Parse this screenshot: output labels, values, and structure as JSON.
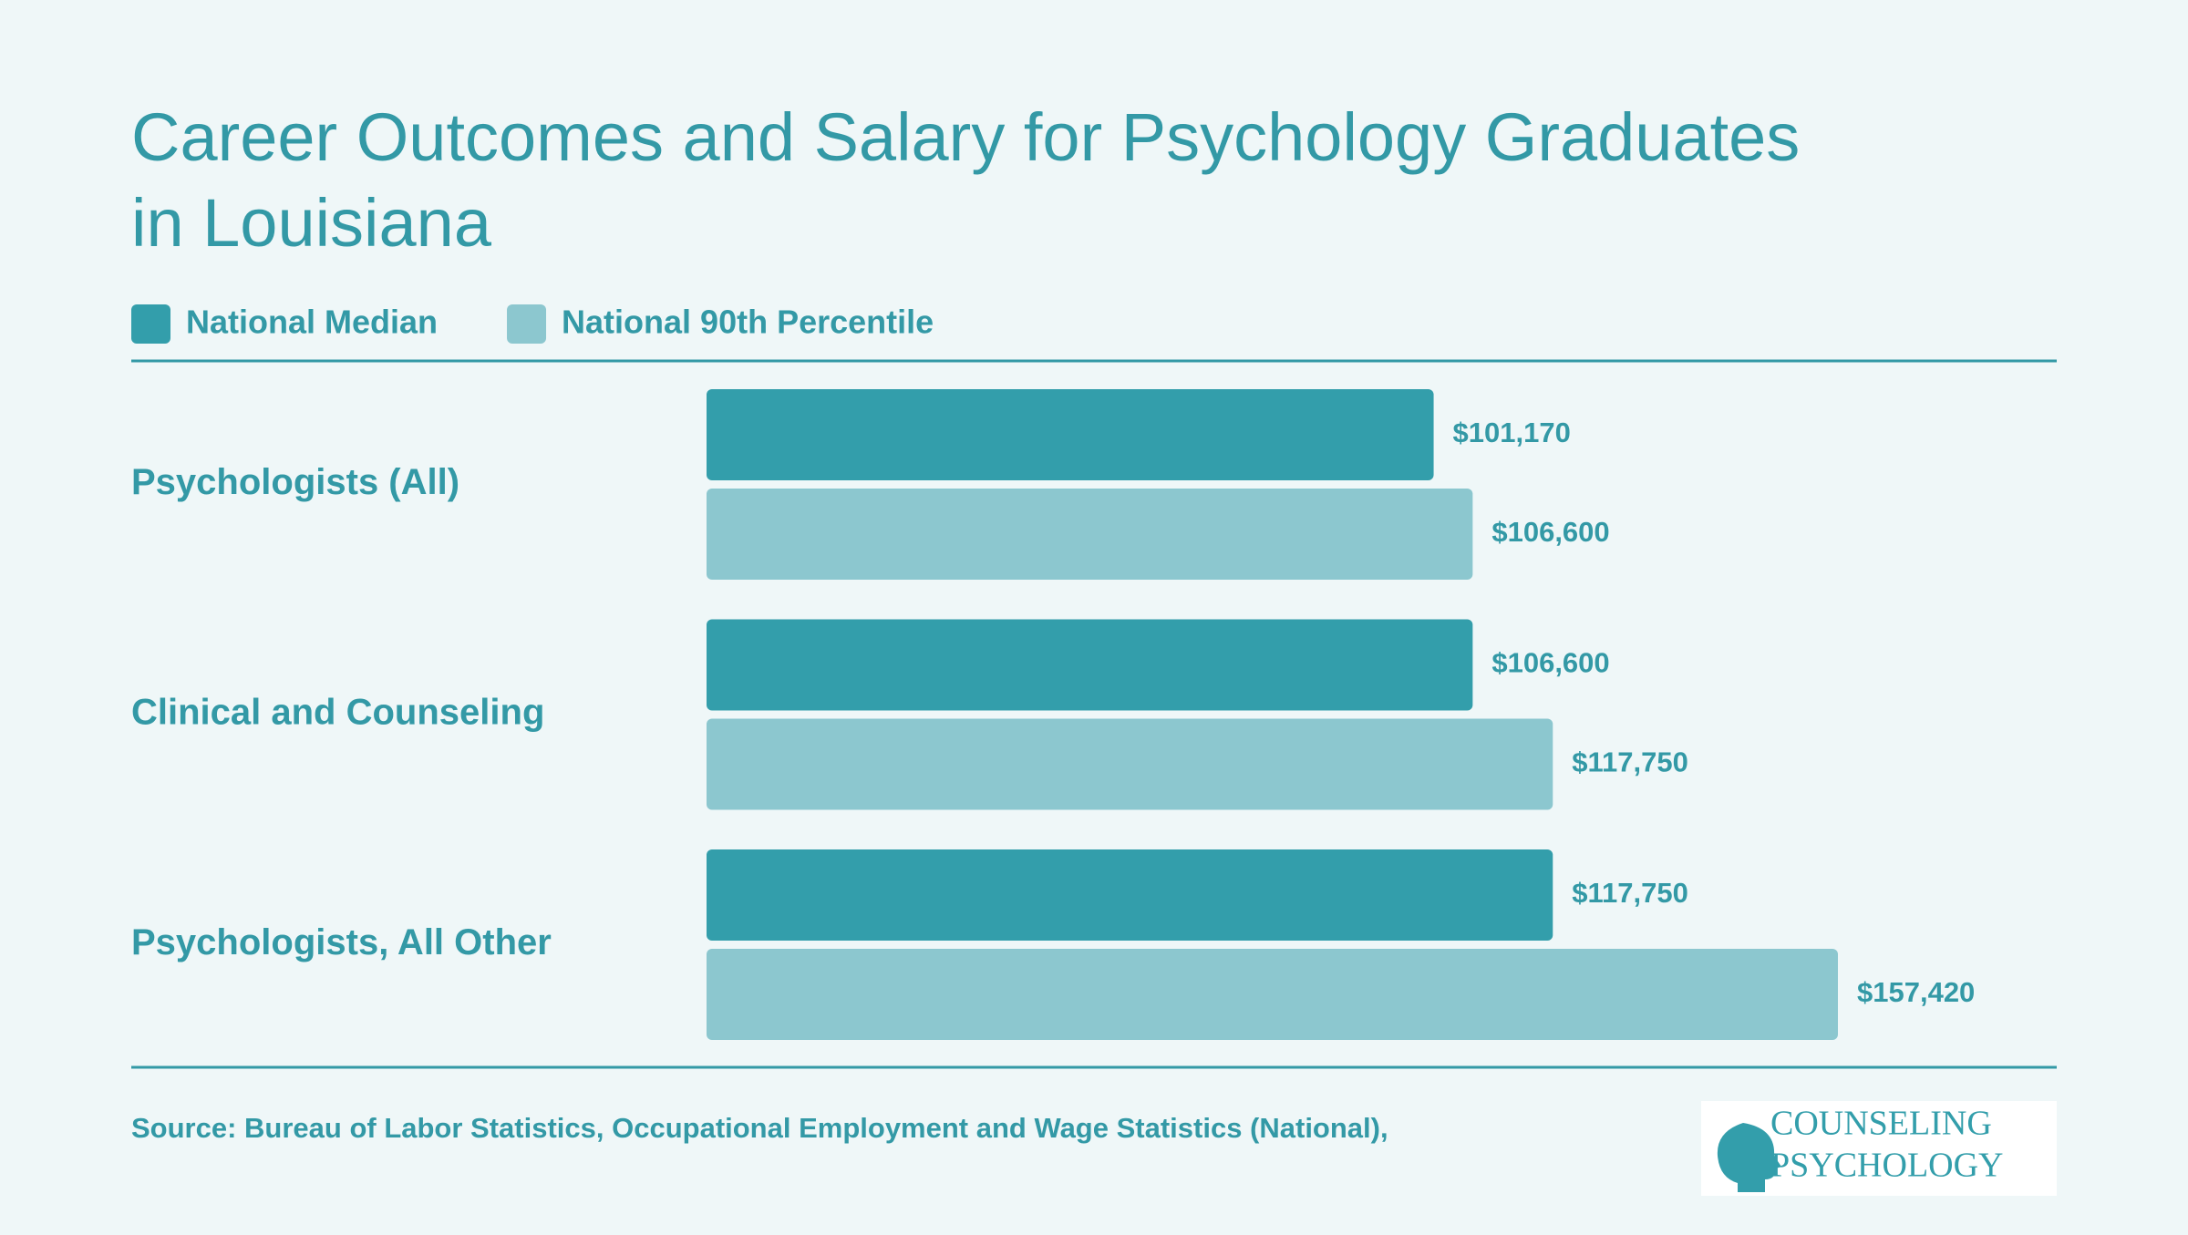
{
  "chart_data": {
    "type": "bar",
    "orientation": "horizontal",
    "title": "Career Outcomes and Salary for Psychology Graduates in Louisiana",
    "categories": [
      "Psychologists (All)",
      "Clinical and Counseling",
      "Psychologists, All Other"
    ],
    "series": [
      {
        "name": "National Median",
        "color": "#339eab",
        "values": [
          101170,
          106600,
          117750
        ],
        "value_labels": [
          "$101,170",
          "$106,600",
          "$117,750"
        ]
      },
      {
        "name": "National 90th Percentile",
        "color": "#8cc7cf",
        "values": [
          106600,
          117750,
          157420
        ],
        "value_labels": [
          "$106,600",
          "$117,750",
          "$157,420"
        ]
      }
    ],
    "source": "Source: Bureau of Labor Statistics, Occupational Employment and Wage Statistics (National),",
    "logo": [
      "COUNSELING",
      "PSYCHOLOGY"
    ]
  }
}
